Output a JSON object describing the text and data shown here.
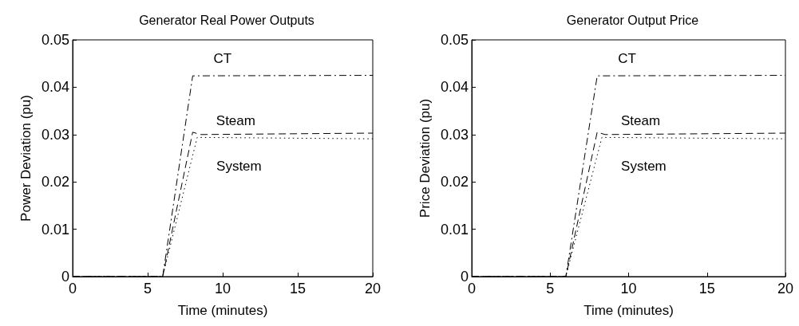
{
  "chart_data": [
    {
      "type": "line",
      "title": "Generator Real Power Outputs",
      "xlabel": "Time (minutes)",
      "ylabel": "Power Deviation (pu)",
      "xlim": [
        0,
        20
      ],
      "xticks": [
        0,
        5,
        10,
        15,
        20
      ],
      "ylim": [
        0,
        0.05
      ],
      "yticks": [
        0,
        0.01,
        0.02,
        0.03,
        0.04,
        0.05
      ],
      "grid": false,
      "legend": false,
      "series": [
        {
          "name": "CT",
          "color": "#000000",
          "line_style": "dashdot",
          "x": [
            0,
            6,
            8,
            20
          ],
          "values": [
            0,
            0,
            0.0424,
            0.0425
          ]
        },
        {
          "name": "Steam",
          "color": "#000000",
          "line_style": "dashed",
          "x": [
            0,
            6,
            8,
            8.5,
            20
          ],
          "values": [
            0,
            0,
            0.0305,
            0.03,
            0.0303
          ]
        },
        {
          "name": "System",
          "color": "#000000",
          "line_style": "dotted",
          "x": [
            0,
            6,
            8.3,
            20
          ],
          "values": [
            0,
            0,
            0.0294,
            0.0291
          ]
        }
      ]
    },
    {
      "type": "line",
      "title": "Generator Output Price",
      "xlabel": "Time (minutes)",
      "ylabel": "Price Deviation (pu)",
      "xlim": [
        0,
        20
      ],
      "xticks": [
        0,
        5,
        10,
        15,
        20
      ],
      "ylim": [
        0,
        0.05
      ],
      "yticks": [
        0,
        0.01,
        0.02,
        0.03,
        0.04,
        0.05
      ],
      "grid": false,
      "legend": false,
      "series": [
        {
          "name": "CT",
          "color": "#000000",
          "line_style": "dashdot",
          "x": [
            0,
            6,
            8,
            20
          ],
          "values": [
            0,
            0,
            0.0424,
            0.0425
          ]
        },
        {
          "name": "Steam",
          "color": "#000000",
          "line_style": "dashed",
          "x": [
            0,
            6,
            8,
            8.5,
            20
          ],
          "values": [
            0,
            0,
            0.0305,
            0.03,
            0.0303
          ]
        },
        {
          "name": "System",
          "color": "#000000",
          "line_style": "dotted",
          "x": [
            0,
            6,
            8.3,
            20
          ],
          "values": [
            0,
            0,
            0.0294,
            0.0291
          ]
        }
      ]
    }
  ]
}
